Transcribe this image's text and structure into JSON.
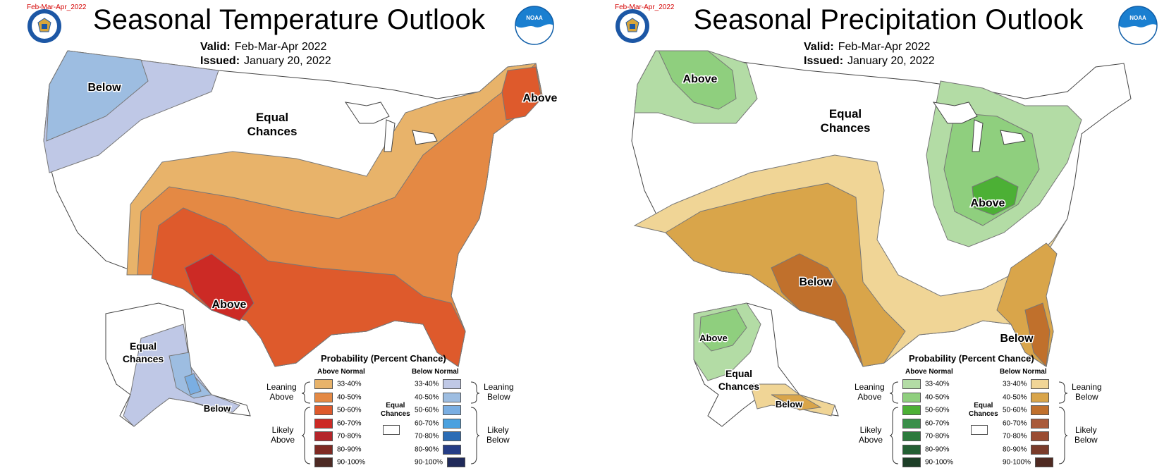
{
  "temperature": {
    "file_tag": "Feb-Mar-Apr_2022",
    "title": "Seasonal Temperature Outlook",
    "valid_label": "Valid:",
    "valid_value": "Feb-Mar-Apr 2022",
    "issued_label": "Issued:",
    "issued_value": "January 20, 2022",
    "map_labels": {
      "below_nw": "Below",
      "equal_line1": "Equal",
      "equal_line2": "Chances",
      "above_ne": "Above",
      "above_sw": "Above",
      "ak_equal_line1": "Equal",
      "ak_equal_line2": "Chances",
      "ak_below": "Below"
    },
    "legend": {
      "title": "Probability (Percent Chance)",
      "left_head": "Above Normal",
      "right_head": "Below Normal",
      "equal_line1": "Equal",
      "equal_line2": "Chances",
      "left_leaning_1": "Leaning",
      "left_leaning_2": "Above",
      "left_likely_1": "Likely",
      "left_likely_2": "Above",
      "right_leaning_1": "Leaning",
      "right_leaning_2": "Below",
      "right_likely_1": "Likely",
      "right_likely_2": "Below",
      "left_rows": [
        {
          "label": "33-40%",
          "color": "#e8b36a"
        },
        {
          "label": "40-50%",
          "color": "#e48944"
        },
        {
          "label": "50-60%",
          "color": "#de5a2c"
        },
        {
          "label": "60-70%",
          "color": "#cc2a25"
        },
        {
          "label": "70-80%",
          "color": "#b4252a"
        },
        {
          "label": "80-90%",
          "color": "#7f2a23"
        },
        {
          "label": "90-100%",
          "color": "#4d2a24"
        }
      ],
      "right_rows": [
        {
          "label": "33-40%",
          "color": "#bfc8e6"
        },
        {
          "label": "40-50%",
          "color": "#9dbde1"
        },
        {
          "label": "50-60%",
          "color": "#7aaee2"
        },
        {
          "label": "60-70%",
          "color": "#4aa1df"
        },
        {
          "label": "70-80%",
          "color": "#2b6cb5"
        },
        {
          "label": "80-90%",
          "color": "#253d86"
        },
        {
          "label": "90-100%",
          "color": "#202a5a"
        }
      ]
    }
  },
  "precipitation": {
    "file_tag": "Feb-Mar-Apr_2022",
    "title": "Seasonal Precipitation Outlook",
    "valid_label": "Valid:",
    "valid_value": "Feb-Mar-Apr 2022",
    "issued_label": "Issued:",
    "issued_value": "January 20, 2022",
    "map_labels": {
      "above_nw": "Above",
      "equal_line1": "Equal",
      "equal_line2": "Chances",
      "above_mw": "Above",
      "below_sw": "Below",
      "below_se": "Below",
      "ak_above": "Above",
      "ak_equal_line1": "Equal",
      "ak_equal_line2": "Chances",
      "ak_below": "Below"
    },
    "legend": {
      "title": "Probability (Percent Chance)",
      "left_head": "Above Normal",
      "right_head": "Below Normal",
      "equal_line1": "Equal",
      "equal_line2": "Chances",
      "left_leaning_1": "Leaning",
      "left_leaning_2": "Above",
      "left_likely_1": "Likely",
      "left_likely_2": "Above",
      "right_leaning_1": "Leaning",
      "right_leaning_2": "Below",
      "right_likely_1": "Likely",
      "right_likely_2": "Below",
      "left_rows": [
        {
          "label": "33-40%",
          "color": "#b3dca5"
        },
        {
          "label": "40-50%",
          "color": "#8fcf7e"
        },
        {
          "label": "50-60%",
          "color": "#4cb035"
        },
        {
          "label": "60-70%",
          "color": "#3a8f4a"
        },
        {
          "label": "70-80%",
          "color": "#2b7a3c"
        },
        {
          "label": "80-90%",
          "color": "#235f33"
        },
        {
          "label": "90-100%",
          "color": "#1d3f27"
        }
      ],
      "right_rows": [
        {
          "label": "33-40%",
          "color": "#f0d596"
        },
        {
          "label": "40-50%",
          "color": "#d9a54a"
        },
        {
          "label": "50-60%",
          "color": "#c0702c"
        },
        {
          "label": "60-70%",
          "color": "#a95a3a"
        },
        {
          "label": "70-80%",
          "color": "#9a4c32"
        },
        {
          "label": "80-90%",
          "color": "#7a3b2a"
        },
        {
          "label": "90-100%",
          "color": "#4f2a22"
        }
      ]
    }
  }
}
